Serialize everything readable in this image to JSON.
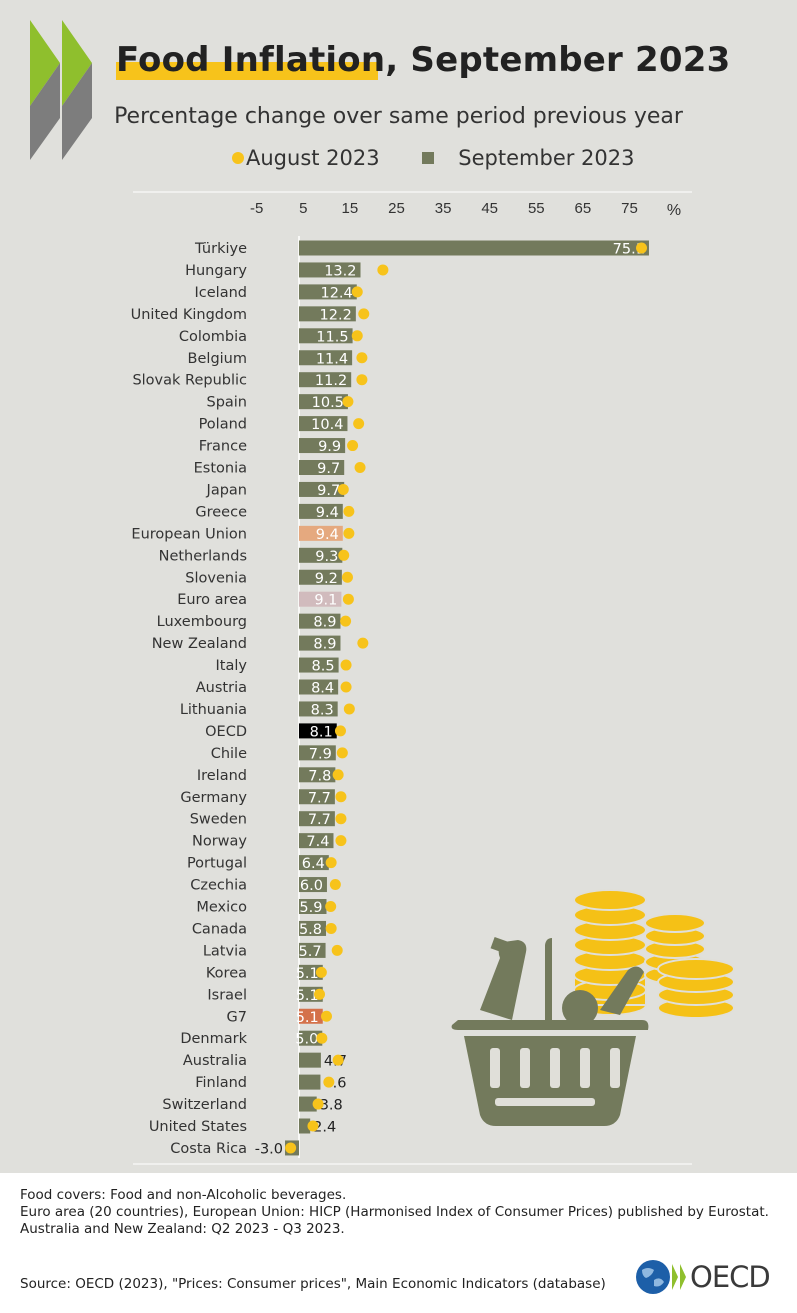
{
  "title": "Food Inflation, September 2023",
  "subtitle": "Percentage change over same period previous year",
  "legend": {
    "august": "August 2023",
    "september": "September 2023"
  },
  "colors": {
    "bar": "#737a5c",
    "dot": "#f7c31b",
    "eu": "#e5a97f",
    "euro_area": "#d1bbbd",
    "oecd": "#000000",
    "g7": "#d4714a",
    "background": "#e0e0dc"
  },
  "chart_data": {
    "type": "bar",
    "orientation": "horizontal",
    "title": "Food Inflation, September 2023",
    "subtitle": "Percentage change over same period previous year",
    "unit": "%",
    "xlim": [
      -5,
      75
    ],
    "ticks": [
      "-5",
      "5",
      "15",
      "25",
      "35",
      "45",
      "55",
      "65",
      "75"
    ],
    "grid": false,
    "legend_position": "top",
    "categories": [
      "Türkiye",
      "Hungary",
      "Iceland",
      "United Kingdom",
      "Colombia",
      "Belgium",
      "Slovak Republic",
      "Spain",
      "Poland",
      "France",
      "Estonia",
      "Japan",
      "Greece",
      "European Union",
      "Netherlands",
      "Slovenia",
      "Euro area",
      "Luxembourg",
      "New Zealand",
      "Italy",
      "Austria",
      "Lithuania",
      "OECD",
      "Chile",
      "Ireland",
      "Germany",
      "Sweden",
      "Norway",
      "Portugal",
      "Czechia",
      "Mexico",
      "Canada",
      "Latvia",
      "Korea",
      "Israel",
      "G7",
      "Denmark",
      "Australia",
      "Finland",
      "Switzerland",
      "United States",
      "Costa Rica"
    ],
    "series": [
      {
        "name": "September 2023",
        "type": "bar",
        "values": [
          75.1,
          13.2,
          12.4,
          12.2,
          11.5,
          11.4,
          11.2,
          10.5,
          10.4,
          9.9,
          9.7,
          9.7,
          9.4,
          9.4,
          9.3,
          9.2,
          9.1,
          8.9,
          8.9,
          8.5,
          8.4,
          8.3,
          8.1,
          7.9,
          7.8,
          7.7,
          7.7,
          7.4,
          6.4,
          6.0,
          5.9,
          5.8,
          5.7,
          5.1,
          5.1,
          5.1,
          5.0,
          4.7,
          4.6,
          3.8,
          2.4,
          -3.0
        ],
        "labels": [
          "75.1",
          "13.2",
          "12.4",
          "12.2",
          "11.5",
          "11.4",
          "11.2",
          "10.5",
          "10.4",
          "9.9",
          "9.7",
          "9.7",
          "9.4",
          "9.4",
          "9.3",
          "9.2",
          "9.1",
          "8.9",
          "8.9",
          "8.5",
          "8.4",
          "8.3",
          "8.1",
          "7.9",
          "7.8",
          "7.7",
          "7.7",
          "7.4",
          "6.4",
          "6.0",
          "5.9",
          "5.8",
          "5.7",
          "5.1",
          "5.1",
          "5.1",
          "5.0",
          "4.7",
          "4.6",
          "3.8",
          "2.4",
          "-3.0"
        ]
      },
      {
        "name": "August 2023",
        "type": "dot",
        "values": [
          73.5,
          18.0,
          12.5,
          13.9,
          12.5,
          13.5,
          13.5,
          10.5,
          12.8,
          11.5,
          13.1,
          9.5,
          10.7,
          10.7,
          9.6,
          10.4,
          10.6,
          10.0,
          13.7,
          10.1,
          10.1,
          10.8,
          8.9,
          9.3,
          8.4,
          9.0,
          9.0,
          9.0,
          6.9,
          7.8,
          6.8,
          6.9,
          8.2,
          4.8,
          4.4,
          5.9,
          4.9,
          8.4,
          6.4,
          4.1,
          3.0,
          -1.8
        ]
      }
    ]
  },
  "notes": [
    "Food covers: Food and non-Alcoholic beverages.",
    "Euro area (20 countries), European Union: HICP (Harmonised Index of Consumer Prices) published by Eurostat.",
    "Australia and New Zealand: Q2 2023 - Q3 2023."
  ],
  "source": "Source: OECD (2023), \"Prices: Consumer prices\", Main Economic Indicators (database)",
  "logo_text": "OECD"
}
